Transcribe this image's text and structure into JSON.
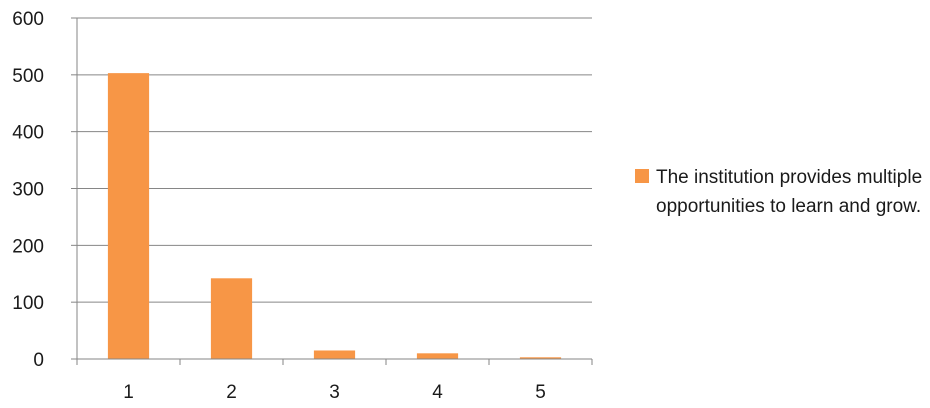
{
  "chart_data": {
    "type": "bar",
    "categories": [
      "1",
      "2",
      "3",
      "4",
      "5"
    ],
    "series": [
      {
        "name": "The institution provides multiple opportunities to learn and grow.",
        "values": [
          503,
          142,
          15,
          10,
          3
        ]
      }
    ],
    "title": "",
    "xlabel": "",
    "ylabel": "",
    "ylim": [
      0,
      600
    ],
    "yticks": [
      "0",
      "100",
      "200",
      "300",
      "400",
      "500",
      "600"
    ],
    "grid": true,
    "legend_position": "right",
    "colors": {
      "bar": "#F79646",
      "grid": "#868686",
      "axis": "#868686",
      "text": "#1a1a1a"
    }
  }
}
